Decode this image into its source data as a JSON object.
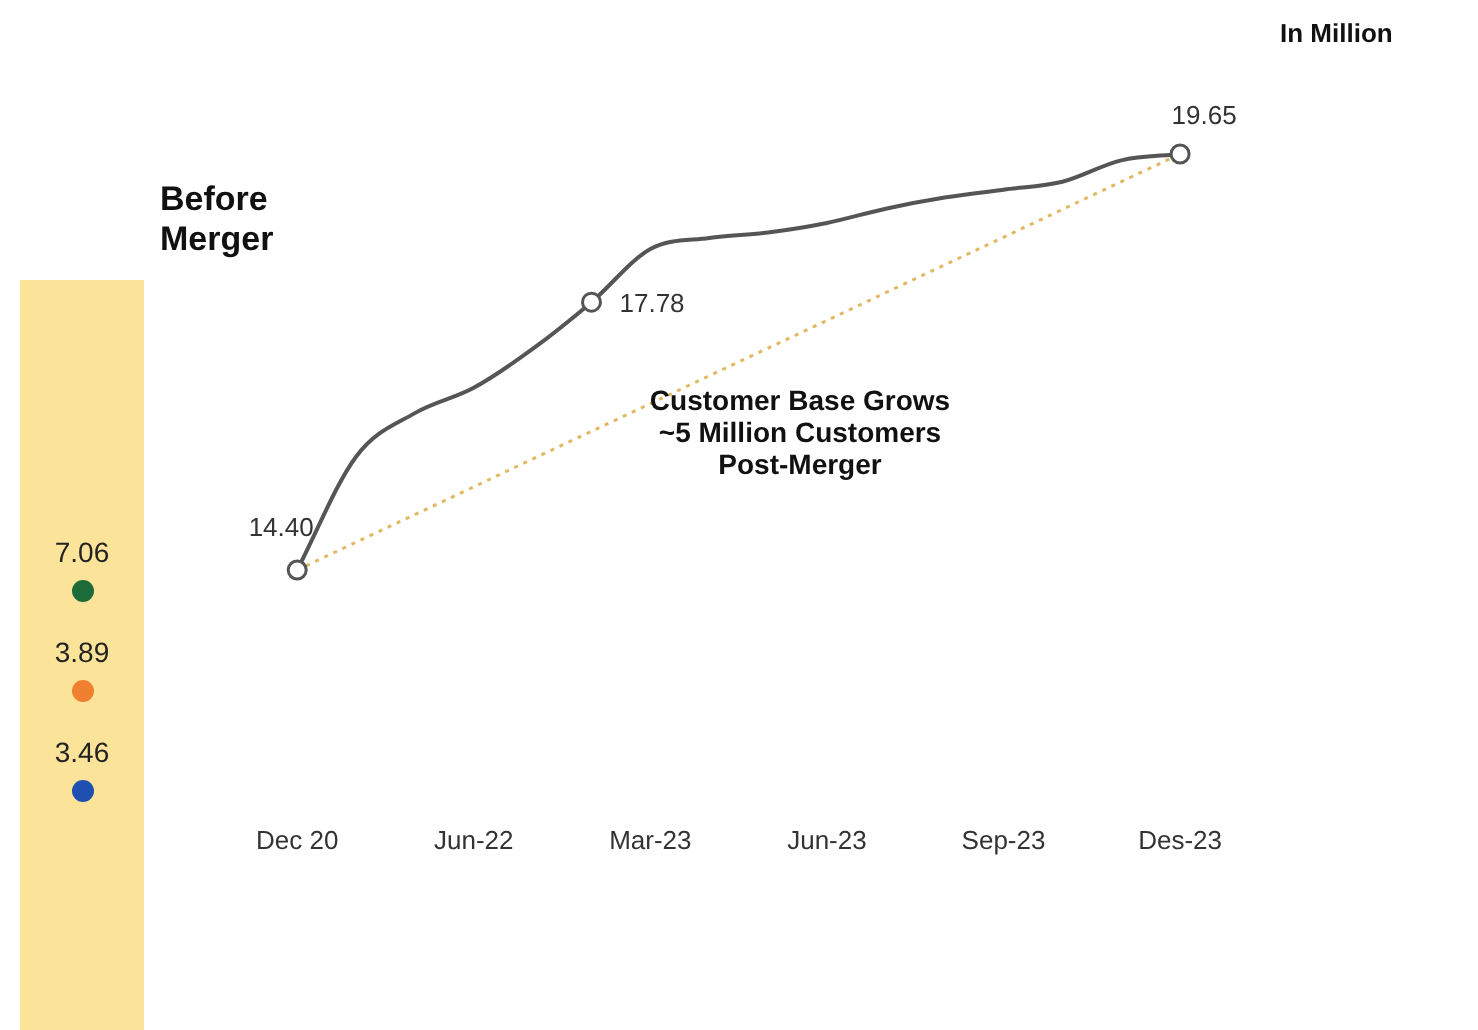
{
  "chart_data": {
    "type": "line",
    "categories": [
      "Dec 20",
      null,
      null,
      "Jun-22",
      null,
      null,
      "Mar-23",
      null,
      null,
      "Jun-23",
      null,
      null,
      "Sep-23",
      null,
      null,
      "Des-23"
    ],
    "series": [
      {
        "color": "#555555",
        "values": [
          14.4,
          15.83,
          16.38,
          16.7,
          17.19,
          17.78,
          18.45,
          18.59,
          18.66,
          18.78,
          18.96,
          19.1,
          19.2,
          19.3,
          19.57,
          19.65
        ],
        "value_labels": [
          "14.40",
          null,
          null,
          null,
          null,
          "17.78",
          null,
          null,
          null,
          null,
          null,
          null,
          null,
          null,
          null,
          "19.65"
        ]
      },
      {
        "color": "#e0b860",
        "line_style": "dotted",
        "values": [
          14.4,
          null,
          null,
          null,
          null,
          null,
          null,
          null,
          null,
          null,
          null,
          null,
          null,
          null,
          null,
          19.65
        ]
      }
    ],
    "tick_labels": "x",
    "grid": false,
    "legend": false,
    "annotations": [
      "In Million",
      "Customer Base Grows\n~5 Million Customers\nPost-Merger",
      "Before Merger",
      "7.06",
      "3.89",
      "3.46"
    ]
  }
}
